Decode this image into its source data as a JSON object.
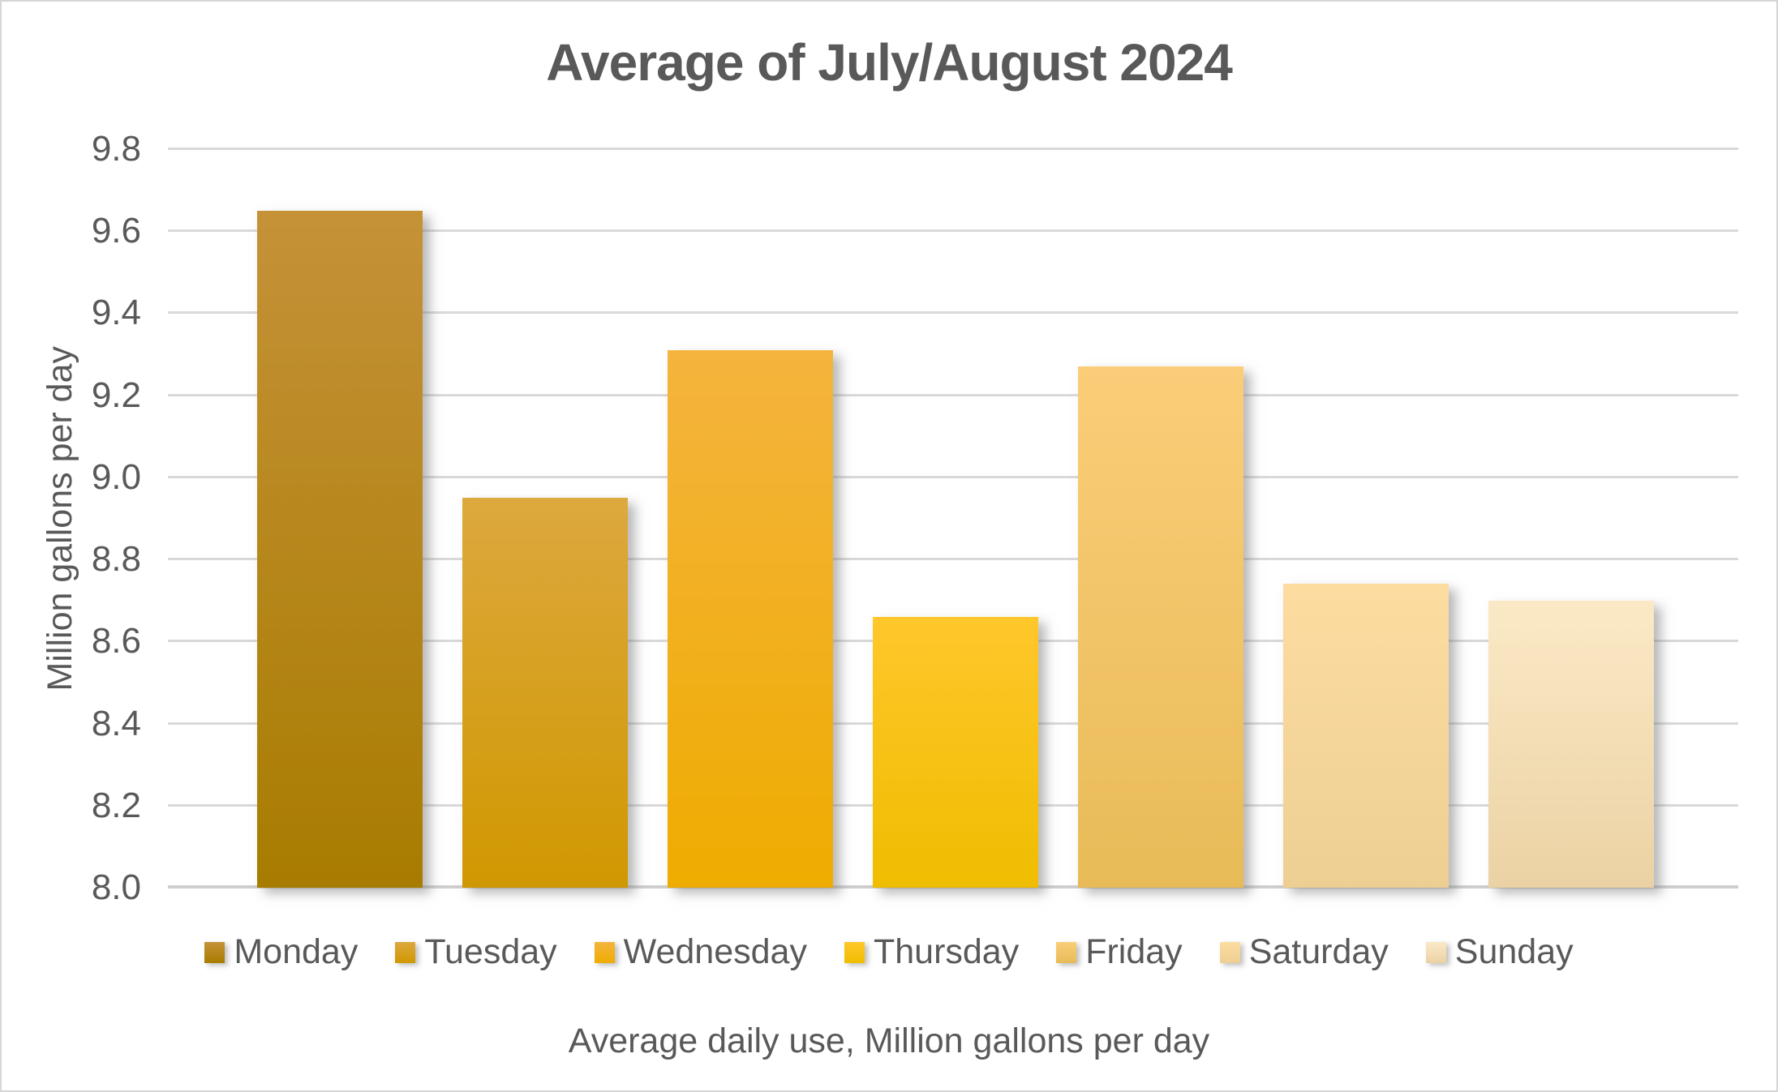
{
  "chart_data": {
    "type": "bar",
    "title": "Average of July/August 2024",
    "categories": [
      "Monday",
      "Tuesday",
      "Wednesday",
      "Thursday",
      "Friday",
      "Saturday",
      "Sunday"
    ],
    "values": [
      9.65,
      8.95,
      9.31,
      8.66,
      9.27,
      8.74,
      8.7
    ],
    "ylabel": "Million gallons per day",
    "xlabel": "Average daily use, Million gallons per day",
    "ylim": [
      8.0,
      9.8
    ],
    "ytick_step": 0.2,
    "ytick_labels": [
      "8.0",
      "8.2",
      "8.4",
      "8.6",
      "8.8",
      "9.0",
      "9.2",
      "9.4",
      "9.6",
      "9.8"
    ],
    "grid": true,
    "legend_position": "bottom",
    "series_colors": [
      {
        "name": "Monday",
        "top": "#C59238",
        "bottom": "#A87C00"
      },
      {
        "name": "Tuesday",
        "top": "#DDA83E",
        "bottom": "#D09800"
      },
      {
        "name": "Wednesday",
        "top": "#F4B43E",
        "bottom": "#EFAC00"
      },
      {
        "name": "Thursday",
        "top": "#FFC72B",
        "bottom": "#EFBD00"
      },
      {
        "name": "Friday",
        "top": "#FBCD78",
        "bottom": "#E8BB58"
      },
      {
        "name": "Saturday",
        "top": "#FDDCA0",
        "bottom": "#EDCF94"
      },
      {
        "name": "Sunday",
        "top": "#FBE9C6",
        "bottom": "#EBD2A4"
      }
    ],
    "text_color": "#595959",
    "gridline_color": "#D9D9D9",
    "background_color": "#FFFFFF"
  }
}
